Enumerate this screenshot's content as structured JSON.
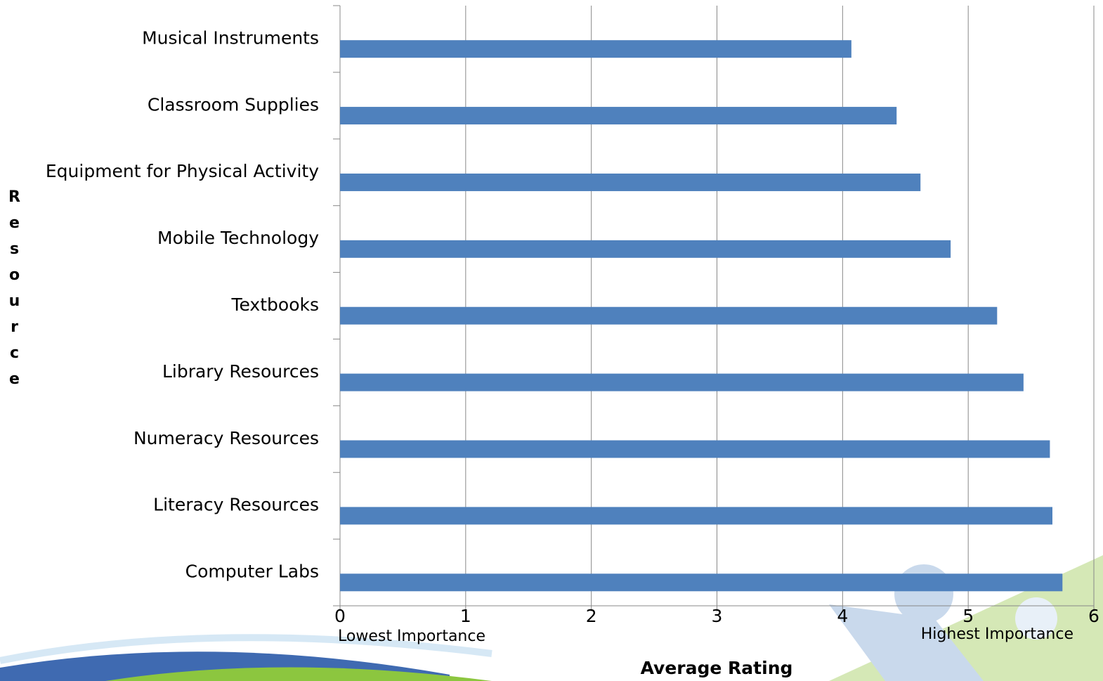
{
  "chart_data": {
    "type": "bar",
    "orientation": "horizontal",
    "categories": [
      "Musical Instruments",
      "Classroom Supplies",
      "Equipment for Physical Activity",
      "Mobile Technology",
      "Textbooks",
      "Library Resources",
      "Numeracy Resources",
      "Literacy Resources",
      "Computer Labs"
    ],
    "values": [
      4.07,
      4.43,
      4.62,
      4.86,
      5.23,
      5.44,
      5.65,
      5.67,
      5.75
    ],
    "color": "#4f81bd",
    "xlim": [
      0,
      6
    ],
    "xticks": [
      0,
      1,
      2,
      3,
      4,
      5,
      6
    ],
    "grid": true,
    "x_axis_label": "Average Rating",
    "y_axis_label": "Resource",
    "annotations": [
      "Lowest Importance",
      "Highest Importance"
    ]
  }
}
